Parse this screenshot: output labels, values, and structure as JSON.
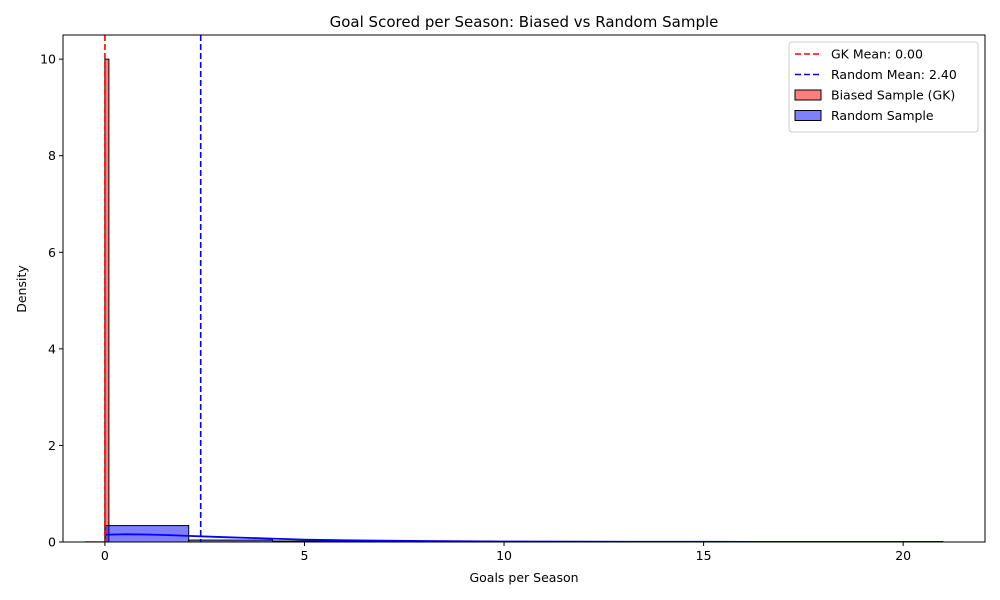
{
  "chart_data": {
    "type": "histogram",
    "title": "Goal Scored per Season: Biased vs Random Sample",
    "xlabel": "Goals per Season",
    "ylabel": "Density",
    "xlim": [
      -1.05,
      22.05
    ],
    "ylim": [
      0,
      10.5
    ],
    "xticks": [
      0,
      5,
      10,
      15,
      20
    ],
    "yticks": [
      0,
      2,
      4,
      6,
      8,
      10
    ],
    "grid": false,
    "legend_position": "top-right",
    "series": [
      {
        "name": "Biased Sample (GK)",
        "kind": "histogram",
        "color": "#ff0000",
        "fill_opacity": 0.5,
        "bins": [
          {
            "x0": 0.0,
            "x1": 0.1,
            "value": 10.0
          }
        ]
      },
      {
        "name": "Random Sample",
        "kind": "histogram",
        "color": "#0000ff",
        "fill_opacity": 0.5,
        "bins": [
          {
            "x0": 0.0,
            "x1": 2.1,
            "value": 0.34
          },
          {
            "x0": 2.1,
            "x1": 4.2,
            "value": 0.04
          },
          {
            "x0": 4.2,
            "x1": 6.3,
            "value": 0.02
          },
          {
            "x0": 6.3,
            "x1": 8.4,
            "value": 0.01
          },
          {
            "x0": 8.4,
            "x1": 10.5,
            "value": 0.01
          },
          {
            "x0": 10.5,
            "x1": 12.6,
            "value": 0.005
          },
          {
            "x0": 12.6,
            "x1": 14.7,
            "value": 0.005
          },
          {
            "x0": 14.7,
            "x1": 16.8,
            "value": 0.005
          },
          {
            "x0": 16.8,
            "x1": 18.9,
            "value": 0.0
          },
          {
            "x0": 18.9,
            "x1": 21.0,
            "value": 0.005
          }
        ],
        "kde": {
          "x": [
            0.0,
            0.5,
            1.0,
            1.5,
            2.0,
            3.0,
            4.0,
            5.0,
            6.0,
            8.0,
            10.0,
            12.0,
            15.0,
            18.0,
            21.0
          ],
          "y": [
            0.15,
            0.16,
            0.155,
            0.145,
            0.13,
            0.1,
            0.075,
            0.05,
            0.035,
            0.02,
            0.01,
            0.006,
            0.004,
            0.002,
            0.001
          ]
        }
      }
    ],
    "reference_lines": [
      {
        "label": "GK Mean: 0.00",
        "x": 0.0,
        "color": "#ff0000",
        "style": "dashed"
      },
      {
        "label": "Random Mean: 2.40",
        "x": 2.4,
        "color": "#0000ff",
        "style": "dashed"
      }
    ],
    "extra_kde": {
      "color": "#ff0000",
      "x": [
        -0.5,
        0.0
      ],
      "y": [
        0.0,
        0.0
      ]
    }
  }
}
